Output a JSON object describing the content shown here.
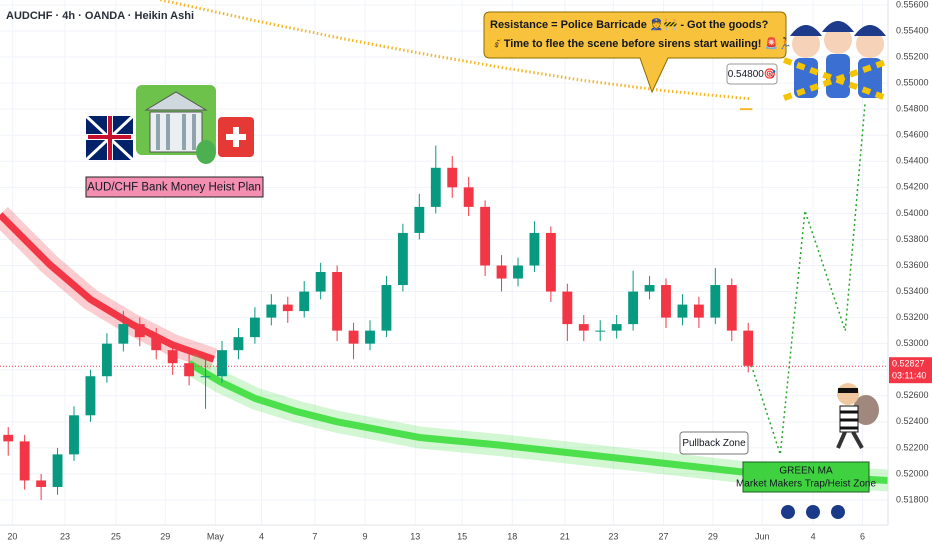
{
  "chart_data": {
    "type": "candlestick",
    "title": "AUDCHF · 4h · OANDA · Heikin Ashi",
    "up_color": "#089981",
    "down_color": "#f23645",
    "xlim": [
      -1,
      107
    ],
    "ylim": [
      0.51608,
      0.55638
    ],
    "xticks": [
      {
        "value": 0.5,
        "label": "20"
      },
      {
        "value": 6.9,
        "label": "23"
      },
      {
        "value": 13.1,
        "label": "25"
      },
      {
        "value": 19.1,
        "label": "29"
      },
      {
        "value": 25.2,
        "label": "May"
      },
      {
        "value": 30.8,
        "label": "4"
      },
      {
        "value": 37.3,
        "label": "7"
      },
      {
        "value": 43.4,
        "label": "9"
      },
      {
        "value": 49.5,
        "label": "13"
      },
      {
        "value": 55.2,
        "label": "15"
      },
      {
        "value": 61.3,
        "label": "18"
      },
      {
        "value": 67.7,
        "label": "21"
      },
      {
        "value": 73.6,
        "label": "23"
      },
      {
        "value": 79.7,
        "label": "27"
      },
      {
        "value": 85.7,
        "label": "29"
      },
      {
        "value": 91.7,
        "label": "Jun"
      },
      {
        "value": 97.9,
        "label": "4"
      },
      {
        "value": 103.9,
        "label": "6"
      }
    ],
    "yticks": [
      {
        "value": 0.518,
        "label": "0.51800"
      },
      {
        "value": 0.52,
        "label": "0.52000"
      },
      {
        "value": 0.522,
        "label": "0.52200"
      },
      {
        "value": 0.524,
        "label": "0.52400"
      },
      {
        "value": 0.526,
        "label": "0.52600"
      },
      {
        "value": 0.528,
        "label": "0.52800"
      },
      {
        "value": 0.53,
        "label": "0.53000"
      },
      {
        "value": 0.532,
        "label": "0.53200"
      },
      {
        "value": 0.534,
        "label": "0.53400"
      },
      {
        "value": 0.536,
        "label": "0.53600"
      },
      {
        "value": 0.538,
        "label": "0.53800"
      },
      {
        "value": 0.54,
        "label": "0.54000"
      },
      {
        "value": 0.542,
        "label": "0.54200"
      },
      {
        "value": 0.544,
        "label": "0.54400"
      },
      {
        "value": 0.546,
        "label": "0.54600"
      },
      {
        "value": 0.548,
        "label": "0.54800"
      },
      {
        "value": 0.55,
        "label": "0.55000"
      },
      {
        "value": 0.552,
        "label": "0.55200"
      },
      {
        "value": 0.554,
        "label": "0.55400"
      },
      {
        "value": 0.556,
        "label": "0.55600"
      }
    ],
    "candles": {
      "x": [
        0,
        2,
        4,
        6,
        8,
        10,
        12,
        14,
        16,
        18,
        20,
        22,
        24,
        26,
        28,
        30,
        32,
        34,
        36,
        38,
        40,
        42,
        44,
        46,
        48,
        50,
        52,
        54,
        56,
        58,
        60,
        62,
        64,
        66,
        68,
        70,
        72,
        74,
        76,
        78,
        80,
        82,
        84,
        86,
        88,
        90
      ],
      "open": [
        0.523,
        0.5225,
        0.5195,
        0.519,
        0.5215,
        0.5245,
        0.5275,
        0.53,
        0.5315,
        0.5305,
        0.5295,
        0.5285,
        0.5275,
        0.5275,
        0.5295,
        0.5305,
        0.532,
        0.533,
        0.5325,
        0.534,
        0.5355,
        0.531,
        0.53,
        0.531,
        0.5345,
        0.5385,
        0.5405,
        0.5435,
        0.542,
        0.5405,
        0.536,
        0.535,
        0.536,
        0.5385,
        0.534,
        0.5315,
        0.531,
        0.531,
        0.5315,
        0.534,
        0.5345,
        0.532,
        0.533,
        0.532,
        0.5345,
        0.531
      ],
      "high": [
        0.5236,
        0.523,
        0.52,
        0.522,
        0.5252,
        0.528,
        0.5308,
        0.5325,
        0.532,
        0.5312,
        0.5302,
        0.5294,
        0.529,
        0.5302,
        0.5312,
        0.5328,
        0.5338,
        0.5336,
        0.5348,
        0.5362,
        0.536,
        0.5316,
        0.5318,
        0.5352,
        0.5392,
        0.5415,
        0.5452,
        0.5444,
        0.5428,
        0.541,
        0.5368,
        0.5366,
        0.5394,
        0.539,
        0.5346,
        0.5322,
        0.5318,
        0.5322,
        0.5356,
        0.5352,
        0.535,
        0.5338,
        0.5336,
        0.5358,
        0.535,
        0.5316
      ],
      "low": [
        0.5214,
        0.5188,
        0.518,
        0.5184,
        0.521,
        0.524,
        0.527,
        0.5294,
        0.5298,
        0.5288,
        0.5276,
        0.5268,
        0.525,
        0.527,
        0.5288,
        0.53,
        0.5314,
        0.5316,
        0.532,
        0.5334,
        0.5302,
        0.5288,
        0.5295,
        0.5305,
        0.534,
        0.538,
        0.54,
        0.5412,
        0.5398,
        0.5352,
        0.534,
        0.5344,
        0.5355,
        0.5332,
        0.5302,
        0.5302,
        0.5302,
        0.5304,
        0.531,
        0.5334,
        0.5312,
        0.5314,
        0.5312,
        0.5315,
        0.5302,
        0.5278
      ],
      "close": [
        0.5225,
        0.5195,
        0.519,
        0.5215,
        0.5245,
        0.5275,
        0.53,
        0.5315,
        0.5305,
        0.5295,
        0.5285,
        0.5275,
        0.5275,
        0.5295,
        0.5305,
        0.532,
        0.533,
        0.5325,
        0.534,
        0.5355,
        0.531,
        0.53,
        0.531,
        0.5345,
        0.5385,
        0.5405,
        0.5435,
        0.542,
        0.5405,
        0.536,
        0.535,
        0.536,
        0.5385,
        0.534,
        0.5315,
        0.531,
        0.531,
        0.5315,
        0.534,
        0.5345,
        0.532,
        0.533,
        0.532,
        0.5345,
        0.531,
        0.5283
      ]
    },
    "lines": [
      {
        "color": "#f23645",
        "style": "band",
        "x": [
          -1,
          5,
          10,
          15,
          20,
          25
        ],
        "values": [
          0.5399,
          0.5361,
          0.5334,
          0.5315,
          0.5299,
          0.5288
        ]
      },
      {
        "color": "#4ce04c",
        "style": "band",
        "x": [
          22,
          26,
          30,
          35,
          40,
          50,
          60,
          70,
          80,
          90,
          107
        ],
        "values": [
          0.5285,
          0.527,
          0.5258,
          0.5248,
          0.524,
          0.5228,
          0.5222,
          0.5215,
          0.5208,
          0.5201,
          0.5195
        ]
      },
      {
        "color": "#f5b62a",
        "style": "dots",
        "x": [
          18.5,
          30,
          40,
          50,
          60,
          70,
          80,
          90.2
        ],
        "values": [
          0.5564,
          0.5548,
          0.5535,
          0.5523,
          0.5512,
          0.5502,
          0.5494,
          0.5488
        ]
      },
      {
        "color": "#26a626",
        "style": "dotted",
        "x": [
          90.2,
          93.9,
          96.9,
          101.8,
          104.2
        ],
        "values": [
          0.5287,
          0.5215,
          0.5402,
          0.531,
          0.5484
        ]
      }
    ],
    "last_price": 0.52827,
    "countdown": "03:11:40",
    "target": {
      "value": 0.548,
      "label": "0.54800🎯"
    },
    "callout": [
      "Resistance = Police Barricade 👮🚧 - Got the goods?",
      "💰Time to flee the scene before sirens start wailing! 🚨🏃💨"
    ],
    "plan_label": "AUD/CHF Bank Money Heist Plan",
    "pullback_label": "Pullback Zone",
    "zone_label": [
      "GREEN MA",
      "Market Makers Trap/Heist Zone"
    ]
  }
}
